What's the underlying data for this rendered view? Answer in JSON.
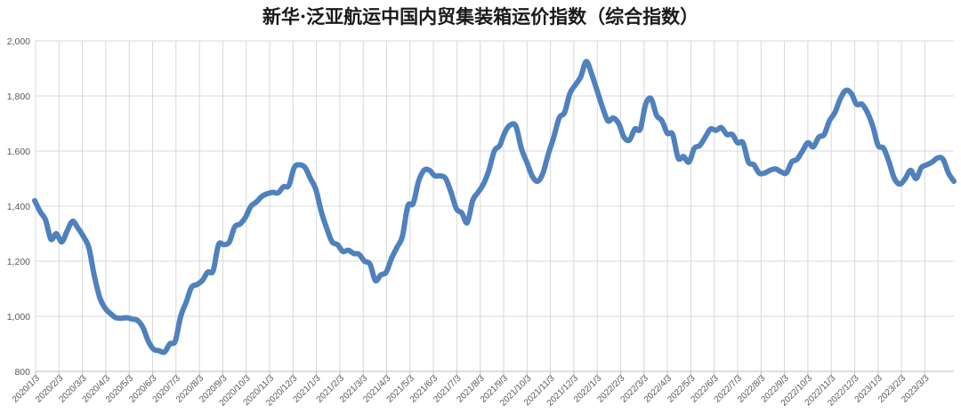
{
  "chart_data": {
    "type": "line",
    "title": "新华·泛亚航运中国内贸集装箱运价指数（综合指数）",
    "xlabel": "",
    "ylabel": "",
    "ylim": [
      800,
      2000
    ],
    "yticks": [
      800,
      1000,
      1200,
      1400,
      1600,
      1800,
      2000
    ],
    "ytick_labels": [
      "800",
      "1,000",
      "1,200",
      "1,400",
      "1,600",
      "1,800",
      "2,000"
    ],
    "xtick_labels": [
      "2020/1/3",
      "2020/2/3",
      "2020/3/3",
      "2020/4/3",
      "2020/5/3",
      "2020/6/3",
      "2020/7/3",
      "2020/8/3",
      "2020/9/3",
      "2020/10/3",
      "2020/11/3",
      "2020/12/3",
      "2021/1/3",
      "2021/2/3",
      "2021/3/3",
      "2021/4/3",
      "2021/5/3",
      "2021/6/3",
      "2021/7/3",
      "2021/8/3",
      "2021/9/3",
      "2021/10/3",
      "2021/11/3",
      "2021/12/3",
      "2022/1/3",
      "2022/2/3",
      "2022/3/3",
      "2022/4/3",
      "2022/5/3",
      "2022/6/3",
      "2022/7/3",
      "2022/8/3",
      "2022/9/3",
      "2022/10/3",
      "2022/11/3",
      "2022/12/3",
      "2023/1/3",
      "2023/2/3",
      "2023/3/3"
    ],
    "grid": true,
    "legend": "none",
    "color": "#4f81bd",
    "series": [
      {
        "x_start": "2020/1/3",
        "x_end": "2023/3/31",
        "values": [
          1420,
          1380,
          1350,
          1280,
          1300,
          1270,
          1310,
          1345,
          1320,
          1290,
          1250,
          1150,
          1070,
          1030,
          1010,
          995,
          993,
          995,
          990,
          985,
          960,
          910,
          880,
          875,
          870,
          900,
          910,
          1000,
          1050,
          1105,
          1115,
          1130,
          1160,
          1165,
          1260,
          1260,
          1270,
          1325,
          1335,
          1360,
          1400,
          1415,
          1435,
          1445,
          1450,
          1448,
          1470,
          1475,
          1540,
          1550,
          1540,
          1500,
          1460,
          1380,
          1320,
          1270,
          1260,
          1235,
          1240,
          1228,
          1225,
          1200,
          1190,
          1130,
          1150,
          1160,
          1210,
          1250,
          1290,
          1400,
          1410,
          1490,
          1530,
          1530,
          1510,
          1510,
          1500,
          1450,
          1390,
          1375,
          1340,
          1420,
          1450,
          1480,
          1530,
          1600,
          1620,
          1670,
          1695,
          1690,
          1610,
          1560,
          1510,
          1490,
          1520,
          1590,
          1650,
          1720,
          1740,
          1810,
          1840,
          1870,
          1925,
          1880,
          1820,
          1760,
          1710,
          1720,
          1700,
          1650,
          1640,
          1680,
          1680,
          1770,
          1790,
          1730,
          1710,
          1665,
          1660,
          1575,
          1580,
          1560,
          1610,
          1620,
          1650,
          1680,
          1675,
          1685,
          1660,
          1660,
          1630,
          1630,
          1560,
          1550,
          1520,
          1520,
          1530,
          1535,
          1525,
          1520,
          1560,
          1570,
          1600,
          1630,
          1615,
          1650,
          1660,
          1710,
          1740,
          1790,
          1820,
          1810,
          1770,
          1770,
          1740,
          1690,
          1620,
          1610,
          1560,
          1500,
          1480,
          1500,
          1530,
          1500,
          1540,
          1550,
          1560,
          1575,
          1570,
          1520,
          1490
        ]
      }
    ]
  }
}
